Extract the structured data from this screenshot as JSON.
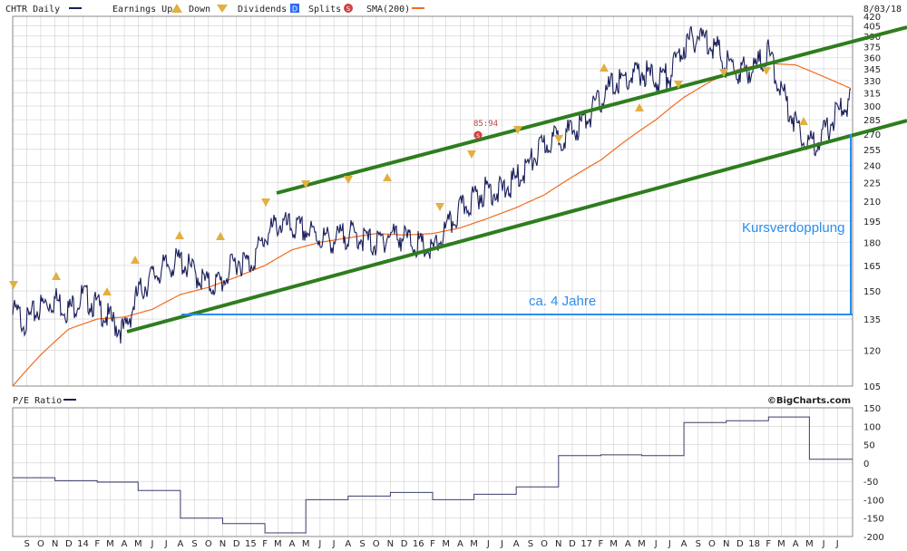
{
  "legend": {
    "ticker": "CHTR Daily",
    "earnings": "Earnings Up",
    "down": "Down",
    "dividends": "Dividends",
    "div_badge": "D",
    "splits": "Splits",
    "split_badge": "S",
    "sma": "SMA(200)",
    "date": "8/03/18"
  },
  "pe": {
    "label": "P/E Ratio",
    "source": "©BigCharts.com"
  },
  "annotations": {
    "kurs": "Kursverdopplung",
    "jahre": "ca. 4 Jahre",
    "div_value": "85:94",
    "div_badge": "S"
  },
  "colors": {
    "price": "#1a1f5a",
    "sma": "#f26b21",
    "channel": "#2e7d1e",
    "annotation": "#2a8cf0",
    "marker": "#e0b040",
    "grid": "#cfcfcf"
  },
  "chart_data": [
    {
      "type": "line",
      "scale": "log",
      "ylim": [
        105,
        420
      ],
      "x_range": [
        "2013-08-01",
        "2018-08-03"
      ],
      "yticks": [
        420,
        405,
        390,
        375,
        360,
        345,
        330,
        315,
        300,
        285,
        270,
        255,
        240,
        225,
        210,
        195,
        180,
        165,
        150,
        135,
        120,
        105
      ],
      "xticks": [
        "S",
        "O",
        "N",
        "D",
        "14",
        "F",
        "M",
        "A",
        "M",
        "J",
        "J",
        "A",
        "S",
        "O",
        "N",
        "D",
        "15",
        "F",
        "M",
        "A",
        "M",
        "J",
        "J",
        "A",
        "S",
        "O",
        "N",
        "D",
        "16",
        "F",
        "M",
        "A",
        "M",
        "J",
        "J",
        "A",
        "S",
        "O",
        "N",
        "D",
        "17",
        "F",
        "M",
        "A",
        "M",
        "J",
        "J",
        "A",
        "S",
        "O",
        "N",
        "D",
        "18",
        "F",
        "M",
        "A",
        "M",
        "J",
        "J"
      ],
      "series": [
        {
          "name": "CHTR Daily",
          "x": [
            "2013-08-01",
            "2013-09-01",
            "2013-10-01",
            "2013-11-01",
            "2013-12-01",
            "2014-01-01",
            "2014-02-01",
            "2014-03-01",
            "2014-04-01",
            "2014-05-01",
            "2014-06-01",
            "2014-07-01",
            "2014-08-01",
            "2014-09-01",
            "2014-10-01",
            "2014-11-01",
            "2014-12-01",
            "2015-01-01",
            "2015-02-01",
            "2015-03-01",
            "2015-04-01",
            "2015-05-01",
            "2015-06-01",
            "2015-07-01",
            "2015-08-01",
            "2015-09-01",
            "2015-10-01",
            "2015-11-01",
            "2015-12-01",
            "2016-01-01",
            "2016-02-01",
            "2016-03-01",
            "2016-04-01",
            "2016-05-01",
            "2016-06-01",
            "2016-07-01",
            "2016-08-01",
            "2016-09-01",
            "2016-10-01",
            "2016-11-01",
            "2016-12-01",
            "2017-01-01",
            "2017-02-01",
            "2017-03-01",
            "2017-04-01",
            "2017-05-01",
            "2017-06-01",
            "2017-07-01",
            "2017-08-01",
            "2017-09-01",
            "2017-10-01",
            "2017-11-01",
            "2017-12-01",
            "2018-01-01",
            "2018-02-01",
            "2018-03-01",
            "2018-04-01",
            "2018-05-01",
            "2018-06-01",
            "2018-07-01",
            "2018-08-01"
          ],
          "values": [
            140,
            135,
            143,
            147,
            141,
            149,
            143,
            136,
            130,
            150,
            160,
            166,
            170,
            162,
            155,
            157,
            170,
            168,
            185,
            195,
            192,
            190,
            185,
            183,
            188,
            185,
            180,
            188,
            185,
            180,
            175,
            190,
            205,
            215,
            222,
            220,
            230,
            245,
            262,
            270,
            275,
            290,
            310,
            330,
            335,
            345,
            335,
            340,
            380,
            395,
            385,
            355,
            345,
            350,
            370,
            320,
            285,
            262,
            272,
            295,
            310
          ]
        },
        {
          "name": "SMA(200)",
          "x": [
            "2013-08-01",
            "2013-10-01",
            "2013-12-01",
            "2014-02-01",
            "2014-04-01",
            "2014-06-01",
            "2014-08-01",
            "2014-10-01",
            "2014-12-01",
            "2015-02-01",
            "2015-04-01",
            "2015-06-01",
            "2015-08-01",
            "2015-10-01",
            "2015-12-01",
            "2016-02-01",
            "2016-04-01",
            "2016-06-01",
            "2016-08-01",
            "2016-10-01",
            "2016-12-01",
            "2017-02-01",
            "2017-04-01",
            "2017-06-01",
            "2017-08-01",
            "2017-10-01",
            "2017-12-01",
            "2018-02-01",
            "2018-04-01",
            "2018-06-01",
            "2018-08-01"
          ],
          "values": [
            105,
            118,
            130,
            135,
            136,
            140,
            148,
            152,
            158,
            165,
            175,
            180,
            183,
            186,
            185,
            186,
            190,
            197,
            205,
            215,
            230,
            245,
            265,
            285,
            310,
            330,
            345,
            352,
            350,
            335,
            320
          ]
        }
      ]
    },
    {
      "type": "line",
      "ylim": [
        -200,
        150
      ],
      "x_range": [
        "2013-08-01",
        "2018-08-03"
      ],
      "yticks": [
        150,
        100,
        50,
        0,
        -50,
        -100,
        -150,
        -200
      ],
      "series": [
        {
          "name": "P/E Ratio",
          "x": [
            "2013-08-01",
            "2013-11-01",
            "2014-02-01",
            "2014-05-01",
            "2014-08-01",
            "2014-11-01",
            "2015-02-01",
            "2015-05-01",
            "2015-08-01",
            "2015-11-01",
            "2016-02-01",
            "2016-05-01",
            "2016-08-01",
            "2016-11-01",
            "2017-02-01",
            "2017-05-01",
            "2017-08-01",
            "2017-11-01",
            "2018-02-01",
            "2018-05-01",
            "2018-08-01"
          ],
          "values": [
            -40,
            -48,
            -52,
            -75,
            -150,
            -165,
            -190,
            -100,
            -90,
            -80,
            -100,
            -85,
            -65,
            20,
            22,
            20,
            110,
            115,
            125,
            10,
            10
          ]
        }
      ]
    }
  ]
}
